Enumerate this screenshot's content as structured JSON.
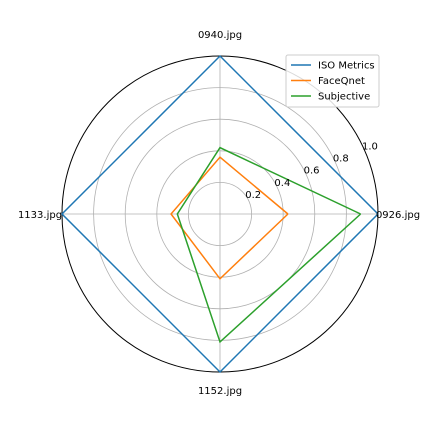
{
  "chart_data": {
    "type": "radar",
    "categories": [
      "0926.jpg",
      "0940.jpg",
      "1133.jpg",
      "1152.jpg"
    ],
    "series": [
      {
        "name": "ISO Metrics",
        "values": [
          1.0,
          1.0,
          1.0,
          1.0
        ],
        "color": "#1f77b4"
      },
      {
        "name": "FaceQnet",
        "values": [
          0.43,
          0.36,
          0.31,
          0.41
        ],
        "color": "#ff7f0e"
      },
      {
        "name": "Subjective",
        "values": [
          0.89,
          0.42,
          0.27,
          0.81
        ],
        "color": "#2ca02c"
      }
    ],
    "radial_ticks": [
      "0.2",
      "0.4",
      "0.6",
      "0.8",
      "1.0"
    ],
    "radial_tick_values": [
      0.2,
      0.4,
      0.6,
      0.8,
      1.0
    ],
    "rlim": [
      0,
      1.0
    ],
    "grid": true,
    "legend_position": "top-right"
  }
}
